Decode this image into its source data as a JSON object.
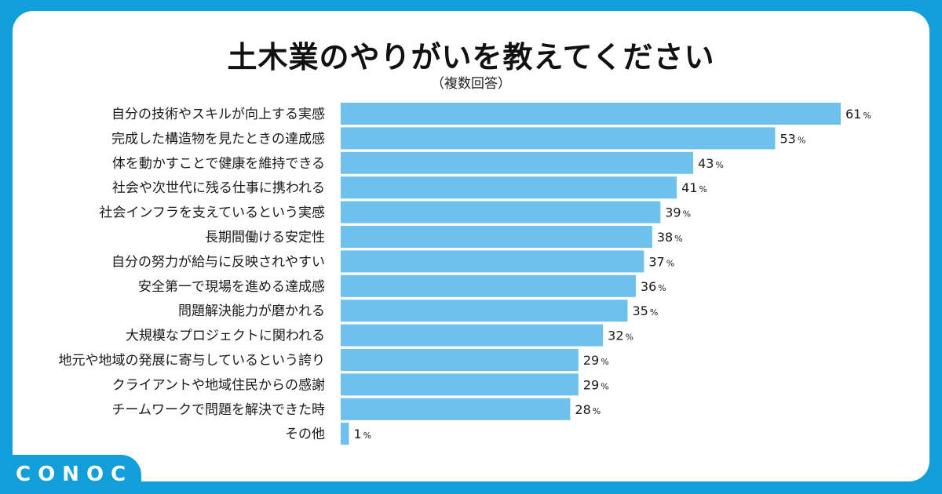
{
  "title": "土木業のやりがいを教えてください",
  "subtitle": "（複数回答）",
  "brand": {
    "name": "CONOC",
    "color": "#129ed9"
  },
  "bar_color": "#6ec1ec",
  "chart_data": {
    "type": "bar",
    "orientation": "horizontal",
    "title": "土木業のやりがいを教えてください",
    "subtitle": "（複数回答）",
    "unit": "%",
    "xlim": [
      0,
      61
    ],
    "grid": false,
    "legend": "none",
    "categories": [
      "自分の技術やスキルが向上する実感",
      "完成した構造物を見たときの達成感",
      "体を動かすことで健康を維持できる",
      "社会や次世代に残る仕事に携われる",
      "社会インフラを支えているという実感",
      "長期間働ける安定性",
      "自分の努力が給与に反映されやすい",
      "安全第一で現場を進める達成感",
      "問題解決能力が磨かれる",
      "大規模なプロジェクトに関われる",
      "地元や地域の発展に寄与しているという誇り",
      "クライアントや地域住民からの感謝",
      "チームワークで問題を解決できた時",
      "その他"
    ],
    "values": [
      61,
      53,
      43,
      41,
      39,
      38,
      37,
      36,
      35,
      32,
      29,
      29,
      28,
      1
    ]
  }
}
